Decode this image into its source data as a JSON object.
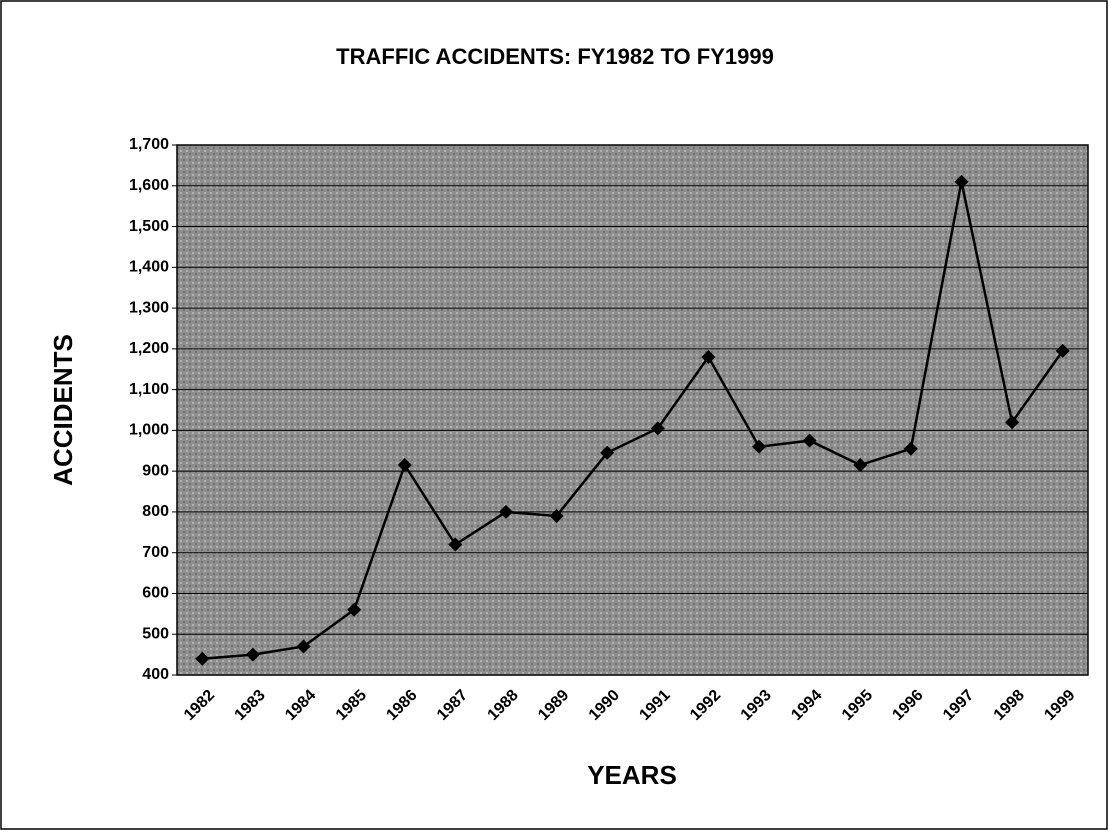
{
  "chart_data": {
    "type": "line",
    "title": "TRAFFIC ACCIDENTS:  FY1982 TO FY1999",
    "x_label": "YEARS",
    "y_label": "ACCIDENTS",
    "categories": [
      "1982",
      "1983",
      "1984",
      "1985",
      "1986",
      "1987",
      "1988",
      "1989",
      "1990",
      "1991",
      "1992",
      "1993",
      "1994",
      "1995",
      "1996",
      "1997",
      "1998",
      "1999"
    ],
    "series": [
      {
        "name": "Accidents",
        "color": "#000000",
        "values": [
          440,
          450,
          470,
          560,
          915,
          720,
          800,
          790,
          945,
          1005,
          1180,
          960,
          975,
          915,
          955,
          1610,
          1020,
          1195
        ]
      }
    ],
    "ylim": [
      400,
      1700
    ],
    "yticks": [
      400,
      500,
      600,
      700,
      800,
      900,
      {
        "value": 1000,
        "label": "1,000"
      },
      {
        "value": 1100,
        "label": "1,100"
      },
      {
        "value": 1200,
        "label": "1,200"
      },
      {
        "value": 1300,
        "label": "1,300"
      },
      {
        "value": 1400,
        "label": "1,400"
      },
      {
        "value": 1500,
        "label": "1,500"
      },
      {
        "value": 1600,
        "label": "1,600"
      },
      {
        "value": 1700,
        "label": "1,700"
      }
    ],
    "grid": true
  }
}
